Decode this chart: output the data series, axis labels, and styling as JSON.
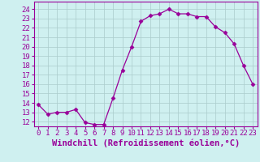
{
  "hours": [
    0,
    1,
    2,
    3,
    4,
    5,
    6,
    7,
    8,
    9,
    10,
    11,
    12,
    13,
    14,
    15,
    16,
    17,
    18,
    19,
    20,
    21,
    22,
    23
  ],
  "values": [
    13.8,
    12.8,
    13.0,
    13.0,
    13.3,
    11.9,
    11.7,
    11.7,
    14.5,
    17.5,
    20.0,
    22.7,
    23.3,
    23.5,
    24.0,
    23.5,
    23.5,
    23.2,
    23.2,
    22.1,
    21.5,
    20.3,
    18.0,
    16.0
  ],
  "line_color": "#990099",
  "marker": "D",
  "marker_size": 2.5,
  "bg_color": "#cff0f0",
  "grid_color": "#aacccc",
  "ylabel_values": [
    12,
    13,
    14,
    15,
    16,
    17,
    18,
    19,
    20,
    21,
    22,
    23,
    24
  ],
  "ylim": [
    11.5,
    24.8
  ],
  "xlim": [
    -0.5,
    23.5
  ],
  "xlabel": "Windchill (Refroidissement éolien,°C)",
  "tick_fontsize": 6.5,
  "label_fontsize": 7.5
}
